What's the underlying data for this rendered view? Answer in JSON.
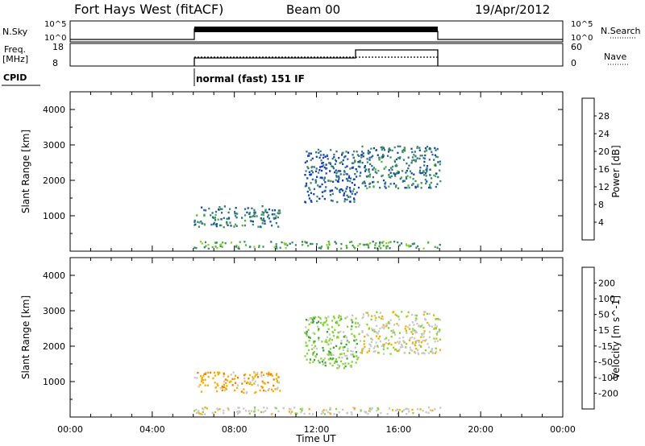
{
  "header": {
    "station": "Fort Hays West (fitACF)",
    "beam": "Beam 00",
    "date": "19/Apr/2012"
  },
  "panels_text": {
    "nsky_label": "N.Sky",
    "nsky_ticks": [
      "10^5",
      "10^0"
    ],
    "nsearch_ticks": [
      "10^5",
      "10^0"
    ],
    "nsearch_label": "N.Search",
    "freq_label_1": "Freq.",
    "freq_label_2": "[MHz]",
    "freq_ticks": [
      "18",
      "8"
    ],
    "nave_ticks": [
      "60",
      "0"
    ],
    "nave_label": "Nave",
    "cpid_label": "CPID",
    "cpid_text": "normal (fast) 151 IF"
  },
  "colors": {
    "power_scale": [
      "#0b22d6",
      "#1546a6",
      "#2e6e8a",
      "#3f8a66",
      "#50b040",
      "#8fcf30",
      "#e0c000",
      "#f0a000",
      "#f07000",
      "#e83000",
      "#e00000"
    ],
    "velocity_scale": [
      "#e00000",
      "#f05000",
      "#f08000",
      "#f0b000",
      "#c8c8c8",
      "#8ad23c",
      "#3fa040",
      "#2f6f8f",
      "#1f4aa8",
      "#1030d0"
    ]
  },
  "chart_data": [
    {
      "type": "heatmap",
      "title": "",
      "ylabel": "Slant Range [km]",
      "xlabel": "",
      "ylim": [
        0,
        4500
      ],
      "y_ticks": [
        "1000",
        "2000",
        "3000",
        "4000"
      ],
      "colorbar": {
        "label": "Power [dB]",
        "ticks": [
          "4",
          "8",
          "12",
          "16",
          "20",
          "24",
          "28"
        ],
        "range": [
          0,
          32
        ]
      },
      "echo_regions": [
        {
          "t_start": 6.0,
          "t_end": 10.2,
          "range_min": 700,
          "range_max": 1300,
          "mean_value": 8
        },
        {
          "t_start": 11.4,
          "t_end": 14.0,
          "range_min": 1400,
          "range_max": 2900,
          "mean_value": 6
        },
        {
          "t_start": 14.0,
          "t_end": 18.0,
          "range_min": 1800,
          "range_max": 3000,
          "mean_value": 8
        },
        {
          "t_start": 6.0,
          "t_end": 18.0,
          "range_min": 100,
          "range_max": 300,
          "mean_value": 12
        }
      ]
    },
    {
      "type": "heatmap",
      "title": "",
      "ylabel": "Slant Range [km]",
      "xlabel": "Time UT",
      "ylim": [
        0,
        4500
      ],
      "y_ticks": [
        "1000",
        "2000",
        "3000",
        "4000"
      ],
      "colorbar": {
        "label": "Velocity [m s^-1]",
        "ticks": [
          "-200",
          "-100",
          "-50",
          "-15",
          "15",
          "50",
          "100",
          "200"
        ]
      },
      "x_ticks": [
        "00:00",
        "04:00",
        "08:00",
        "12:00",
        "16:00",
        "20:00",
        "00:00"
      ],
      "echo_regions": [
        {
          "t_start": 6.0,
          "t_end": 10.2,
          "range_min": 700,
          "range_max": 1300,
          "mean_value": -40
        },
        {
          "t_start": 11.4,
          "t_end": 14.0,
          "range_min": 1400,
          "range_max": 2900,
          "mean_value": 20
        },
        {
          "t_start": 14.0,
          "t_end": 18.0,
          "range_min": 1800,
          "range_max": 3000,
          "mean_value": 0
        },
        {
          "t_start": 6.0,
          "t_end": 18.0,
          "range_min": 100,
          "range_max": 300,
          "mean_value": 10
        }
      ]
    }
  ]
}
